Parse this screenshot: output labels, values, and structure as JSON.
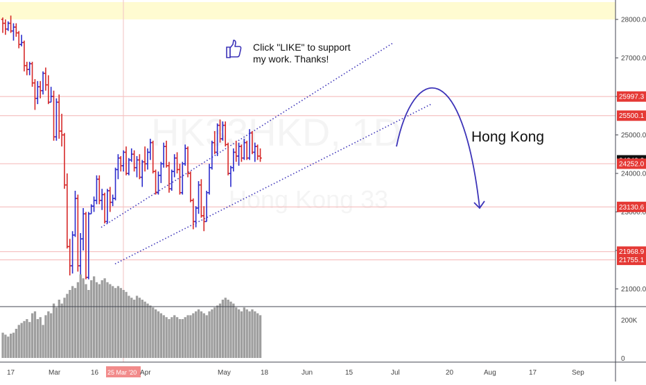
{
  "watermark": {
    "symbol": "HK33HKD, 1D",
    "name": "Hong Kong 33"
  },
  "annotations": {
    "like_line1": "Click \"LIKE\" to support",
    "like_line2": "my work. Thanks!",
    "region_label": "Hong Kong",
    "like_icon": "thumbs-up-icon",
    "projection_icon": "curved-arrow-icon"
  },
  "colors": {
    "up": "#2b2bcc",
    "down": "#d62828",
    "channel": "#3c33b8",
    "price_badge": "#e53935",
    "current_badge": "#111111",
    "highlight_band": "#fffbd1"
  },
  "chart_data": {
    "type": "ohlc",
    "symbol": "HK33HKD",
    "interval": "1D",
    "y_axis": {
      "ticks": [
        21000,
        22000,
        23000,
        24000,
        25000,
        26000,
        27000,
        28000
      ],
      "tick_labels": [
        "21000.0",
        "22000.0",
        "23000.0",
        "24000.0",
        "25000.0",
        "26000.0",
        "27000.0",
        "28000.0"
      ]
    },
    "x_axis": {
      "tick_labels": [
        "17",
        "Mar",
        "16",
        "25 Mar '20",
        "Apr",
        "May",
        "18",
        "Jun",
        "15",
        "Jul",
        "20",
        "Aug",
        "17",
        "Sep"
      ],
      "crosshair_label": "25 Mar '20"
    },
    "price_labels": [
      {
        "value": 25997.3,
        "label": "25997.3",
        "style": "red"
      },
      {
        "value": 25500.1,
        "label": "25500.1",
        "style": "red"
      },
      {
        "value": 24340.2,
        "label": "24340.2",
        "style": "dark"
      },
      {
        "value": 24252.0,
        "label": "24252.0",
        "style": "red"
      },
      {
        "value": 23130.6,
        "label": "23130.6",
        "style": "red"
      },
      {
        "value": 21968.9,
        "label": "21968.9",
        "style": "red"
      },
      {
        "value": 21755.1,
        "label": "21755.1",
        "style": "red"
      }
    ],
    "volume_axis": {
      "tick_labels": [
        "200K",
        "0"
      ],
      "max": 200000
    },
    "bars": [
      [
        28000,
        28050,
        27650,
        27900,
        130000
      ],
      [
        27900,
        28000,
        27600,
        27750,
        120000
      ],
      [
        27750,
        27950,
        27700,
        27900,
        110000
      ],
      [
        27900,
        28100,
        27650,
        27700,
        125000
      ],
      [
        27700,
        27900,
        27450,
        27800,
        130000
      ],
      [
        27800,
        27900,
        27550,
        27650,
        150000
      ],
      [
        27650,
        27700,
        27250,
        27350,
        170000
      ],
      [
        27350,
        27600,
        27300,
        27400,
        180000
      ],
      [
        27400,
        27450,
        26650,
        26800,
        190000
      ],
      [
        26800,
        26900,
        26550,
        26700,
        200000
      ],
      [
        26700,
        26900,
        26550,
        26850,
        185000
      ],
      [
        26850,
        26900,
        26250,
        26350,
        230000
      ],
      [
        26350,
        26450,
        25650,
        25950,
        240000
      ],
      [
        25950,
        26400,
        25800,
        26250,
        200000
      ],
      [
        26250,
        26400,
        25950,
        26150,
        210000
      ],
      [
        26150,
        26650,
        26050,
        26600,
        170000
      ],
      [
        26600,
        26750,
        26150,
        26300,
        220000
      ],
      [
        26300,
        26550,
        25800,
        25850,
        240000
      ],
      [
        25850,
        26250,
        25850,
        26000,
        230000
      ],
      [
        26000,
        26150,
        24850,
        24950,
        280000
      ],
      [
        24950,
        25950,
        24850,
        25850,
        260000
      ],
      [
        25850,
        26050,
        24900,
        25100,
        300000
      ],
      [
        25100,
        25550,
        24700,
        25000,
        280000
      ],
      [
        25000,
        25050,
        23600,
        23700,
        310000
      ],
      [
        23700,
        24000,
        22050,
        22100,
        330000
      ],
      [
        22100,
        22300,
        21350,
        21600,
        350000
      ],
      [
        21600,
        22500,
        21400,
        22400,
        370000
      ],
      [
        22400,
        23550,
        22350,
        23350,
        360000
      ],
      [
        23350,
        23450,
        21450,
        21600,
        390000
      ],
      [
        21600,
        22450,
        20950,
        22300,
        430000
      ],
      [
        22300,
        23100,
        22000,
        22950,
        410000
      ],
      [
        22950,
        23000,
        21250,
        21300,
        380000
      ],
      [
        21300,
        23000,
        21250,
        22950,
        350000
      ],
      [
        22950,
        23200,
        22950,
        23150,
        400000
      ],
      [
        23150,
        23400,
        23000,
        23300,
        420000
      ],
      [
        23300,
        23950,
        23200,
        23850,
        390000
      ],
      [
        23850,
        23950,
        23200,
        23300,
        380000
      ],
      [
        23300,
        23600,
        23050,
        23450,
        400000
      ],
      [
        23450,
        23500,
        22700,
        22750,
        410000
      ],
      [
        22750,
        23600,
        22700,
        23550,
        390000
      ],
      [
        23550,
        23650,
        23000,
        23250,
        380000
      ],
      [
        23250,
        23450,
        23150,
        23350,
        370000
      ],
      [
        23350,
        24150,
        23300,
        24100,
        360000
      ],
      [
        24100,
        24500,
        23850,
        24400,
        370000
      ],
      [
        24400,
        24450,
        24050,
        24200,
        360000
      ],
      [
        24200,
        24600,
        24050,
        24550,
        350000
      ],
      [
        24550,
        24700,
        23950,
        24000,
        340000
      ],
      [
        24000,
        24400,
        23950,
        24350,
        320000
      ],
      [
        24350,
        24650,
        24300,
        24500,
        310000
      ],
      [
        24500,
        24600,
        24050,
        24150,
        300000
      ],
      [
        24150,
        24450,
        23900,
        24350,
        320000
      ],
      [
        24350,
        24500,
        23850,
        23900,
        310000
      ],
      [
        23900,
        24350,
        23650,
        24300,
        300000
      ],
      [
        24300,
        24700,
        24050,
        24250,
        290000
      ],
      [
        24250,
        24650,
        24100,
        24550,
        280000
      ],
      [
        24550,
        24900,
        24350,
        24800,
        270000
      ],
      [
        24800,
        24850,
        24000,
        24050,
        260000
      ],
      [
        24050,
        24100,
        23450,
        23500,
        250000
      ],
      [
        23500,
        24050,
        23450,
        23950,
        240000
      ],
      [
        23950,
        24300,
        23750,
        24250,
        230000
      ],
      [
        24250,
        24800,
        24150,
        24700,
        220000
      ],
      [
        24700,
        24850,
        24150,
        24200,
        210000
      ],
      [
        24200,
        24300,
        23500,
        23600,
        200000
      ],
      [
        23600,
        24100,
        23550,
        24050,
        210000
      ],
      [
        24050,
        24500,
        23900,
        24400,
        220000
      ],
      [
        24400,
        24550,
        24000,
        24100,
        210000
      ],
      [
        24100,
        24250,
        23450,
        23500,
        200000
      ],
      [
        23500,
        24300,
        23450,
        24250,
        200000
      ],
      [
        24250,
        24750,
        24200,
        24650,
        210000
      ],
      [
        24650,
        24700,
        23900,
        24000,
        220000
      ],
      [
        24000,
        24050,
        23250,
        23300,
        220000
      ],
      [
        23300,
        23350,
        22550,
        22750,
        230000
      ],
      [
        22750,
        23150,
        22600,
        23100,
        240000
      ],
      [
        23100,
        23800,
        22950,
        23700,
        250000
      ],
      [
        23700,
        23850,
        22850,
        22900,
        240000
      ],
      [
        22900,
        23150,
        22500,
        22750,
        230000
      ],
      [
        22750,
        23550,
        22750,
        23500,
        220000
      ],
      [
        23500,
        24250,
        23450,
        24150,
        240000
      ],
      [
        24150,
        24850,
        24100,
        24800,
        250000
      ],
      [
        24800,
        25100,
        24500,
        24550,
        260000
      ],
      [
        24550,
        25300,
        24450,
        25250,
        270000
      ],
      [
        25250,
        25400,
        24800,
        24900,
        280000
      ],
      [
        24900,
        25350,
        24850,
        25250,
        300000
      ],
      [
        25250,
        25350,
        24700,
        24750,
        310000
      ],
      [
        24750,
        24800,
        23950,
        24000,
        300000
      ],
      [
        24000,
        24200,
        23650,
        24150,
        290000
      ],
      [
        24150,
        24650,
        24050,
        24550,
        280000
      ],
      [
        24550,
        24850,
        24300,
        24450,
        260000
      ],
      [
        24450,
        24800,
        24200,
        24700,
        250000
      ],
      [
        24700,
        24750,
        24300,
        24400,
        240000
      ],
      [
        24400,
        24900,
        24350,
        24800,
        260000
      ],
      [
        24800,
        24850,
        24350,
        24400,
        250000
      ],
      [
        24400,
        25150,
        24350,
        25050,
        240000
      ],
      [
        25050,
        25100,
        24500,
        24550,
        250000
      ],
      [
        24550,
        24800,
        24300,
        24700,
        240000
      ],
      [
        24700,
        24750,
        24350,
        24450,
        230000
      ],
      [
        24450,
        24650,
        24300,
        24400,
        220000
      ]
    ],
    "lines": [
      {
        "name": "",
        "style": "dotted",
        "points": [
          [
            "17 Mar",
            22600
          ],
          [
            "Jul",
            27400
          ]
        ]
      },
      {
        "name": "",
        "style": "dotted",
        "points": [
          [
            "25 Mar",
            21650
          ],
          [
            "Jul",
            25800
          ]
        ]
      }
    ],
    "projection": {
      "style": "arrow",
      "from_value": 24700,
      "peak_value": 25800,
      "to_value": 23100
    },
    "horizontal_lines": [
      25997.3,
      25500.1,
      24252.0,
      23130.6,
      21968.9,
      21755.1
    ],
    "highlight_band": [
      28000,
      28450
    ]
  }
}
